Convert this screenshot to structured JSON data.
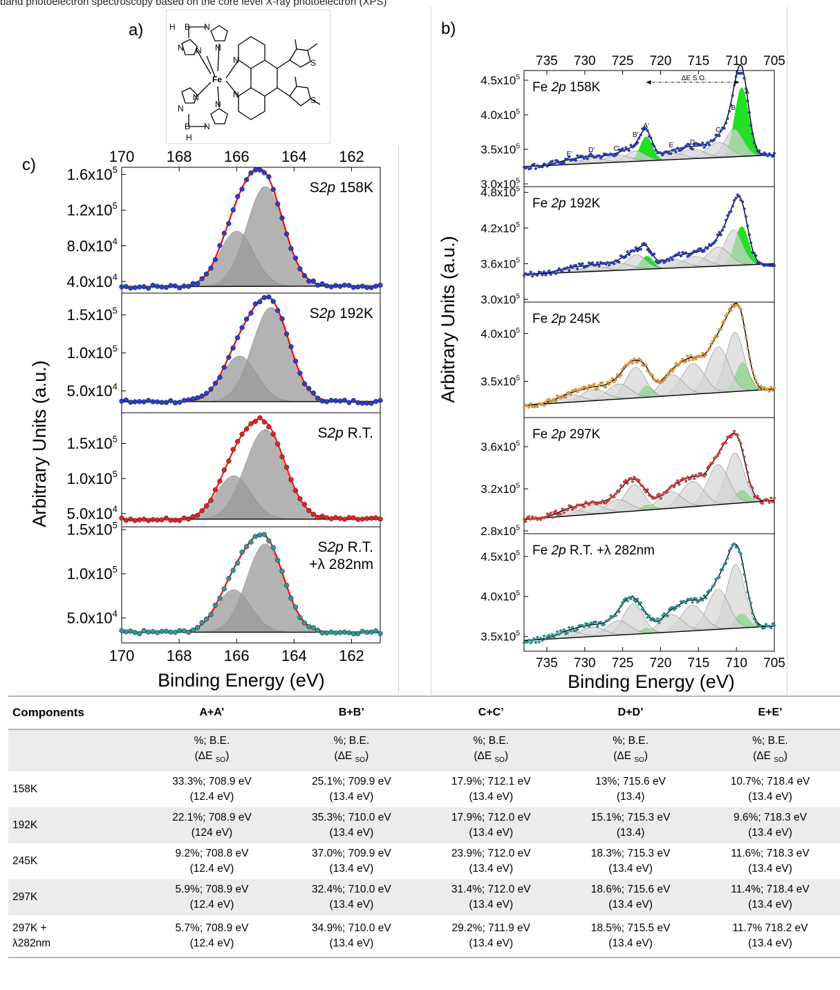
{
  "top_fragment": "band photoelectron spectroscopy based on the core level X-ray photoelectron (XPS)",
  "panel_labels": {
    "a": "a)",
    "b": "b)",
    "c": "c)"
  },
  "molecule": {
    "atoms": [
      "H",
      "B",
      "N",
      "N",
      "N",
      "N",
      "Fe",
      "N",
      "N",
      "N",
      "N",
      "N",
      "N",
      "B",
      "H",
      "S",
      "S"
    ]
  },
  "panel_c": {
    "ylabel": "Arbitrary Units (a.u.)",
    "xlabel": "Binding Energy (eV)",
    "x_ticks": [
      "170",
      "168",
      "166",
      "164",
      "162"
    ]
  },
  "panel_b": {
    "ylabel": "Arbitrary Units (a.u.)",
    "xlabel": "Binding Energy (eV)",
    "x_ticks": [
      "735",
      "730",
      "725",
      "720",
      "715",
      "710",
      "705"
    ],
    "annotation": "ΔE S.O.",
    "peak_labels": [
      "E'",
      "D'",
      "C'",
      "B'",
      "A'",
      "E",
      "D",
      "C",
      "B",
      "A"
    ]
  },
  "chart_data": [
    {
      "type": "line",
      "panel": "c",
      "xlabel": "Binding Energy (eV)",
      "ylabel": "Arbitrary Units (a.u.)",
      "xlim": [
        170,
        161
      ],
      "subplots": [
        {
          "label": "S2p 158K",
          "label_parts": [
            "S",
            "2p",
            " 158K"
          ],
          "marker_color": "#2a3ec8",
          "fit_color": "#ff0000",
          "y_ticks": [
            "1.6x10^5",
            "1.2x10^5",
            "8.0x10^4",
            "4.0x10^4"
          ],
          "ylim": [
            30000,
            165000
          ],
          "background": [
            34000,
            35000
          ],
          "peaks": [
            {
              "center": 165.0,
              "height": 112000,
              "width": 0.65
            },
            {
              "center": 166.0,
              "height": 62000,
              "width": 0.6
            }
          ]
        },
        {
          "label": "S2p 192K",
          "label_parts": [
            "S",
            "2p",
            " 192K"
          ],
          "marker_color": "#2a3ec8",
          "fit_color": "#ff0000",
          "y_ticks": [
            "1.5x10^5",
            "1.0x10^5",
            "5.0x10^4"
          ],
          "ylim": [
            25000,
            175000
          ],
          "background": [
            36000,
            36000
          ],
          "peaks": [
            {
              "center": 164.8,
              "height": 124000,
              "width": 0.65
            },
            {
              "center": 165.9,
              "height": 60000,
              "width": 0.6
            }
          ]
        },
        {
          "label": "S2p R.T.",
          "label_parts": [
            "S",
            "2p",
            " R.T."
          ],
          "marker_color": "#e52222",
          "fit_color": "#e52222",
          "y_ticks": [
            "1.5x10^5",
            "1.0x10^5",
            "5.0x10^4"
          ],
          "ylim": [
            35000,
            190000
          ],
          "background": [
            42000,
            42000
          ],
          "peaks": [
            {
              "center": 165.0,
              "height": 128000,
              "width": 0.7
            },
            {
              "center": 166.1,
              "height": 62000,
              "width": 0.6
            }
          ]
        },
        {
          "label": "S2p R.T.",
          "label_parts": [
            "S",
            "2p",
            " R.T."
          ],
          "extra_label": "+λ 282nm",
          "marker_color": "#2a9a9a",
          "fit_color": "#ff0000",
          "y_ticks": [
            "1.5x10^5",
            "1.0x10^5",
            "5.0x10^4"
          ],
          "ylim": [
            25000,
            150000
          ],
          "background": [
            34000,
            34000
          ],
          "peaks": [
            {
              "center": 165.0,
              "height": 100000,
              "width": 0.65
            },
            {
              "center": 166.1,
              "height": 48000,
              "width": 0.6
            }
          ]
        }
      ]
    },
    {
      "type": "line",
      "panel": "b",
      "xlabel": "Binding Energy (eV)",
      "ylabel": "Arbitrary Units (a.u.)",
      "xlim": [
        738,
        705
      ],
      "subplots": [
        {
          "label": "Fe 2p 158K",
          "label_parts": [
            "Fe ",
            "2p",
            " 158K"
          ],
          "marker_color": "#2a3ec8",
          "y_ticks": [
            "4.5x10^5",
            "4.0x10^5",
            "3.5x10^5",
            "3.0x10^5"
          ],
          "ylim": [
            300000,
            460000
          ],
          "background": [
            325000,
            342000
          ],
          "peaks": [
            {
              "center": 709.3,
              "height": 100000,
              "width": 0.9
            },
            {
              "center": 710.3,
              "height": 40000,
              "width": 1.2
            },
            {
              "center": 712.4,
              "height": 22000,
              "width": 1.5
            },
            {
              "center": 715.8,
              "height": 14000,
              "width": 1.6
            },
            {
              "center": 718.6,
              "height": 10000,
              "width": 1.6
            },
            {
              "center": 721.9,
              "height": 35000,
              "width": 0.8
            },
            {
              "center": 723.3,
              "height": 15000,
              "width": 1.3
            },
            {
              "center": 725.6,
              "height": 10000,
              "width": 1.6
            },
            {
              "center": 729.0,
              "height": 8000,
              "width": 1.6
            },
            {
              "center": 732.0,
              "height": 6000,
              "width": 1.6
            }
          ],
          "green_peaks": [
            0,
            5
          ]
        },
        {
          "label": "Fe 2p 192K",
          "label_parts": [
            "Fe ",
            "2p",
            " 192K"
          ],
          "marker_color": "#2a3ec8",
          "y_ticks": [
            "4.8x10^5",
            "4.2x10^5",
            "3.6x10^5",
            "3.0x10^5"
          ],
          "ylim": [
            300000,
            485000
          ],
          "background": [
            342000,
            360000
          ],
          "peaks": [
            {
              "center": 709.3,
              "height": 65000,
              "width": 0.9
            },
            {
              "center": 710.4,
              "height": 60000,
              "width": 1.2
            },
            {
              "center": 712.4,
              "height": 32000,
              "width": 1.5
            },
            {
              "center": 715.5,
              "height": 18000,
              "width": 1.6
            },
            {
              "center": 718.4,
              "height": 15000,
              "width": 1.6
            },
            {
              "center": 721.8,
              "height": 22000,
              "width": 0.8
            },
            {
              "center": 723.2,
              "height": 25000,
              "width": 1.3
            },
            {
              "center": 725.5,
              "height": 12000,
              "width": 1.6
            },
            {
              "center": 728.8,
              "height": 9000,
              "width": 1.6
            },
            {
              "center": 732.0,
              "height": 7000,
              "width": 1.6
            }
          ],
          "green_peaks": [
            0,
            5
          ]
        },
        {
          "label": "Fe 2p 245K",
          "label_parts": [
            "Fe ",
            "2p",
            " 245K"
          ],
          "marker_color": "#f3a030",
          "y_ticks": [
            "4.0x10^5",
            "3.5x10^5"
          ],
          "ylim": [
            315000,
            430000
          ],
          "background": [
            325000,
            342000
          ],
          "peaks": [
            {
              "center": 709.2,
              "height": 30000,
              "width": 0.9
            },
            {
              "center": 710.2,
              "height": 62000,
              "width": 1.2
            },
            {
              "center": 712.4,
              "height": 48000,
              "width": 1.4
            },
            {
              "center": 715.7,
              "height": 32000,
              "width": 1.5
            },
            {
              "center": 718.5,
              "height": 22000,
              "width": 1.5
            },
            {
              "center": 721.8,
              "height": 12000,
              "width": 0.8
            },
            {
              "center": 723.3,
              "height": 32000,
              "width": 1.3
            },
            {
              "center": 725.5,
              "height": 16000,
              "width": 1.5
            },
            {
              "center": 728.8,
              "height": 12000,
              "width": 1.6
            },
            {
              "center": 732.0,
              "height": 8000,
              "width": 1.6
            }
          ],
          "green_peaks": [
            0,
            5
          ]
        },
        {
          "label": "Fe 2p 297K",
          "label_parts": [
            "Fe ",
            "2p",
            " 297K"
          ],
          "marker_color": "#e84040",
          "y_ticks": [
            "3.6x10^5",
            "3.2x10^5",
            "2.8x10^5"
          ],
          "ylim": [
            280000,
            385000
          ],
          "background": [
            291000,
            309000
          ],
          "peaks": [
            {
              "center": 709.3,
              "height": 12000,
              "width": 0.9
            },
            {
              "center": 710.2,
              "height": 48000,
              "width": 1.2
            },
            {
              "center": 712.4,
              "height": 38000,
              "width": 1.4
            },
            {
              "center": 715.8,
              "height": 24000,
              "width": 1.5
            },
            {
              "center": 718.7,
              "height": 16000,
              "width": 1.5
            },
            {
              "center": 721.8,
              "height": 5000,
              "width": 0.8
            },
            {
              "center": 723.5,
              "height": 25000,
              "width": 1.3
            },
            {
              "center": 725.6,
              "height": 12000,
              "width": 1.5
            },
            {
              "center": 729.0,
              "height": 9000,
              "width": 1.6
            },
            {
              "center": 732.0,
              "height": 6000,
              "width": 1.6
            }
          ],
          "green_peaks": [
            0,
            5
          ]
        },
        {
          "label": "Fe 2p R.T. +λ 282nm",
          "label_parts": [
            "Fe ",
            "2p",
            "  R.T. +λ 282nm"
          ],
          "marker_color": "#2a9a9a",
          "y_ticks": [
            "4.5x10^5",
            "4.0x10^5",
            "3.5x10^5"
          ],
          "ylim": [
            335000,
            475000
          ],
          "background": [
            345000,
            363000
          ],
          "peaks": [
            {
              "center": 709.3,
              "height": 18000,
              "width": 0.9
            },
            {
              "center": 710.1,
              "height": 80000,
              "width": 1.2
            },
            {
              "center": 712.4,
              "height": 50000,
              "width": 1.4
            },
            {
              "center": 715.8,
              "height": 32000,
              "width": 1.5
            },
            {
              "center": 718.6,
              "height": 22000,
              "width": 1.5
            },
            {
              "center": 721.8,
              "height": 7000,
              "width": 0.8
            },
            {
              "center": 723.6,
              "height": 38000,
              "width": 1.3
            },
            {
              "center": 725.6,
              "height": 18000,
              "width": 1.5
            },
            {
              "center": 729.0,
              "height": 12000,
              "width": 1.6
            },
            {
              "center": 732.0,
              "height": 8000,
              "width": 1.6
            }
          ],
          "green_peaks": [
            0,
            5
          ]
        }
      ]
    },
    {
      "type": "table",
      "header": [
        "Components",
        "A+A’",
        "B+B’",
        "C+C’",
        "D+D’",
        "E+E’"
      ],
      "subheader": {
        "line1": "%; B.E.",
        "line2": "(ΔE",
        "line2_sub": "SO",
        "line2_end": ")"
      },
      "rows": [
        {
          "label": [
            "158K"
          ],
          "cells": [
            [
              "33.3%; 708.9 eV",
              "(12.4 eV)"
            ],
            [
              "25.1%; 709.9 eV",
              "(13.4 eV)"
            ],
            [
              "17.9%; 712.1 eV",
              "(13.4 eV)"
            ],
            [
              "13%; 715.6 eV",
              "(13.4)"
            ],
            [
              "10.7%; 718.4 eV",
              "(13.4 eV)"
            ]
          ]
        },
        {
          "label": [
            "192K"
          ],
          "cells": [
            [
              "22.1%; 708.9 eV",
              "(124 eV)"
            ],
            [
              "35.3%; 710.0 eV",
              "(13.4 eV)"
            ],
            [
              "17.9%; 712.0 eV",
              "(13.4 eV)"
            ],
            [
              "15.1%; 715.3 eV",
              "(13.4)"
            ],
            [
              "9.6%; 718.3 eV",
              "(13.4 eV)"
            ]
          ]
        },
        {
          "label": [
            "245K"
          ],
          "cells": [
            [
              "9.2%; 708.8 eV",
              "(12.4 eV)"
            ],
            [
              "37.0%; 709.9 eV",
              "(13.4 eV)"
            ],
            [
              "23.9%; 712.0 eV",
              "(13.4 eV)"
            ],
            [
              "18.3%; 715.3 eV",
              "(13.4 eV)"
            ],
            [
              "11.6%; 718.3 eV",
              "(13.4 eV)"
            ]
          ]
        },
        {
          "label": [
            "297K"
          ],
          "cells": [
            [
              "5.9%; 708.9 eV",
              "(12.4 eV)"
            ],
            [
              "32.4%; 710.0 eV",
              "(13.4 eV)"
            ],
            [
              "31.4%; 712.0 eV",
              "(13.4 eV)"
            ],
            [
              "18.6%; 715.6 eV",
              "(13.4 eV)"
            ],
            [
              "11.4%; 718.4 eV",
              "(13.4 eV)"
            ]
          ]
        },
        {
          "label": [
            "297K +",
            "λ282nm"
          ],
          "cells": [
            [
              "5.7%; 708.9 eV",
              "(12.4 eV)"
            ],
            [
              "34.9%; 710.0 eV",
              "(13.4 eV)"
            ],
            [
              "29.2%; 711.9 eV",
              "(13.4 eV)"
            ],
            [
              "18.5%; 715.5 eV",
              "(13.4 eV)"
            ],
            [
              "11.7% 718.2 eV",
              "(13.4 eV)"
            ]
          ]
        }
      ]
    }
  ]
}
